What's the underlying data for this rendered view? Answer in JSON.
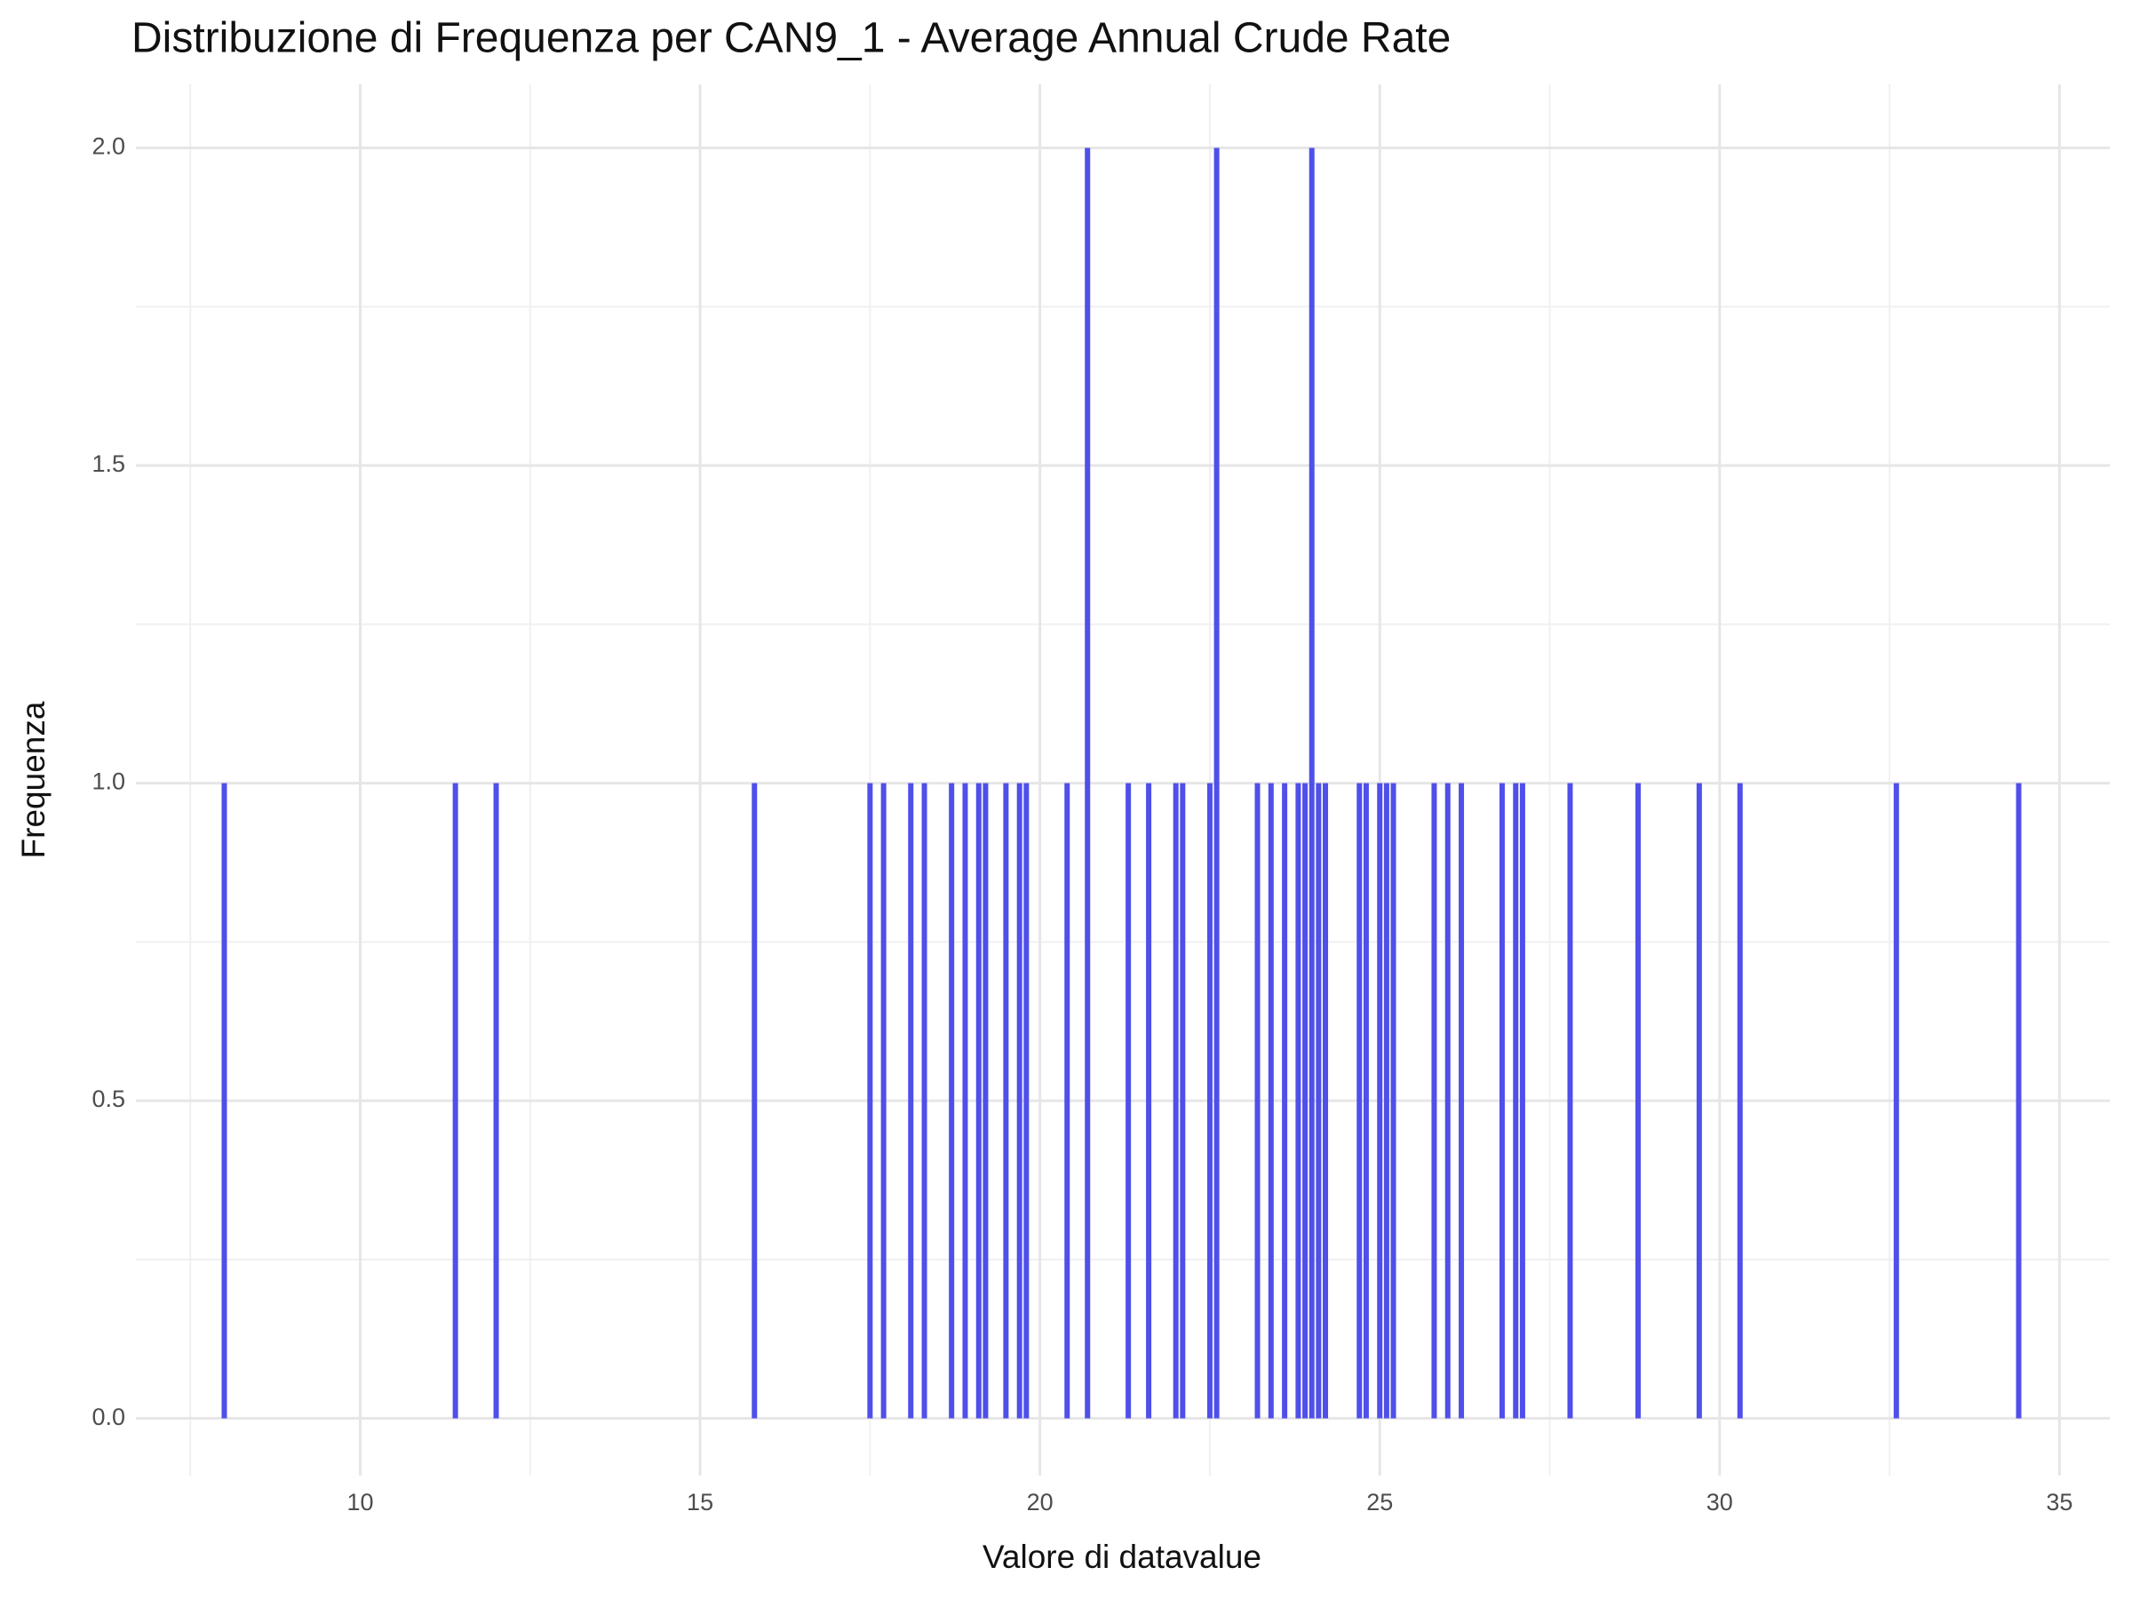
{
  "chart_data": {
    "type": "bar",
    "title": "Distribuzione di Frequenza per CAN9_1 - Average Annual Crude Rate",
    "x_label": "Valore di datavalue",
    "y_label": "Frequenza",
    "x": [
      8.0,
      11.4,
      12.0,
      15.8,
      17.5,
      17.7,
      18.1,
      18.3,
      18.7,
      18.9,
      19.1,
      19.2,
      19.5,
      19.7,
      19.8,
      20.4,
      20.7,
      21.3,
      21.6,
      22.0,
      22.1,
      22.5,
      22.6,
      23.2,
      23.4,
      23.6,
      23.8,
      23.9,
      24.0,
      24.1,
      24.2,
      24.7,
      24.8,
      25.0,
      25.1,
      25.2,
      25.8,
      26.0,
      26.2,
      26.8,
      27.0,
      27.1,
      27.8,
      28.8,
      29.7,
      30.3,
      32.6,
      34.4
    ],
    "values": [
      1,
      1,
      1,
      1,
      1,
      1,
      1,
      1,
      1,
      1,
      1,
      1,
      1,
      1,
      1,
      1,
      2,
      1,
      1,
      1,
      1,
      1,
      2,
      1,
      1,
      1,
      1,
      1,
      2,
      1,
      1,
      1,
      1,
      1,
      1,
      1,
      1,
      1,
      1,
      1,
      1,
      1,
      1,
      1,
      1,
      1,
      1,
      1
    ],
    "color": "#4f4fea",
    "xlim": [
      6.7,
      35.74
    ],
    "xticks": [
      10,
      15,
      20,
      25,
      30,
      35
    ],
    "ylim": [
      -0.09,
      2.1
    ],
    "yticks": [
      {
        "value": 0,
        "label": "0.0"
      },
      0.5,
      {
        "value": 1,
        "label": "1.0"
      },
      1.5,
      {
        "value": 2,
        "label": "2.0"
      }
    ],
    "grid": true
  }
}
